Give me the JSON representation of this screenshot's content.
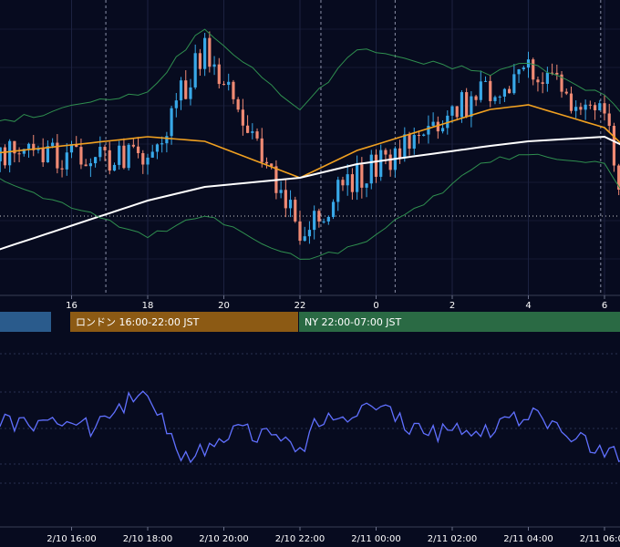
{
  "chart_data": [
    {
      "type": "candlestick",
      "title": "",
      "xlabel": "",
      "ylabel": "",
      "x_tick_labels": [
        "16",
        "18",
        "20",
        "22",
        "0",
        "2",
        "4",
        "6"
      ],
      "overlays": [
        {
          "key": "ma_orange",
          "name": "",
          "color": "#f0a020"
        },
        {
          "key": "ma_white",
          "name": "",
          "color": "#ffffff"
        },
        {
          "key": "bb_upper",
          "name": "",
          "color": "#2f8f4f"
        },
        {
          "key": "bb_lower",
          "name": "",
          "color": "#2f8f4f"
        }
      ],
      "candle_colors": {
        "up": "#38a8e8",
        "down": "#f08a74"
      },
      "ylim": [
        190,
        340
      ],
      "reference_level": 237,
      "grid": true,
      "sessions": [
        {
          "label": "",
          "color": "#2a5b8c"
        },
        {
          "label": "ロンドン 16:00-22:00 JST",
          "color": "#8c5a14"
        },
        {
          "label": "NY 22:00-07:00 JST",
          "color": "#2a6a44"
        }
      ],
      "time_hours": [
        14.0,
        18.0,
        19.5,
        22.0,
        23.5,
        27.0,
        28.0,
        30.0,
        30.5
      ],
      "close": [
        167,
        175,
        50,
        250,
        195,
        95,
        78,
        130,
        228
      ],
      "ma_orange": [
        168,
        150,
        155,
        195,
        165,
        120,
        115,
        140,
        160
      ],
      "ma_white": [
        275,
        220,
        205,
        195,
        180,
        160,
        155,
        150,
        160
      ],
      "bb_upper": [
        135,
        100,
        30,
        120,
        55,
        80,
        70,
        105,
        125
      ],
      "bb_lower": [
        195,
        260,
        235,
        285,
        270,
        175,
        170,
        180,
        215
      ]
    },
    {
      "type": "line",
      "title": "",
      "xlabel": "",
      "ylabel": "",
      "x_tick_labels": [
        "2/10 16:00",
        "2/10 18:00",
        "2/10 20:00",
        "2/10 22:00",
        "2/11 00:00",
        "2/11 02:00",
        "2/11 04:00",
        "2/11 06:00"
      ],
      "ylim": [
        380,
        600
      ],
      "grid": true,
      "color": "#6070ff",
      "time_hours": [
        14.0,
        16.5,
        18.0,
        19.0,
        20.5,
        22.0,
        22.5,
        24.0,
        25.0,
        27.0,
        28.0,
        29.5,
        30.5
      ],
      "values": [
        462,
        468,
        428,
        505,
        470,
        495,
        460,
        445,
        475,
        470,
        455,
        485,
        505
      ]
    }
  ]
}
